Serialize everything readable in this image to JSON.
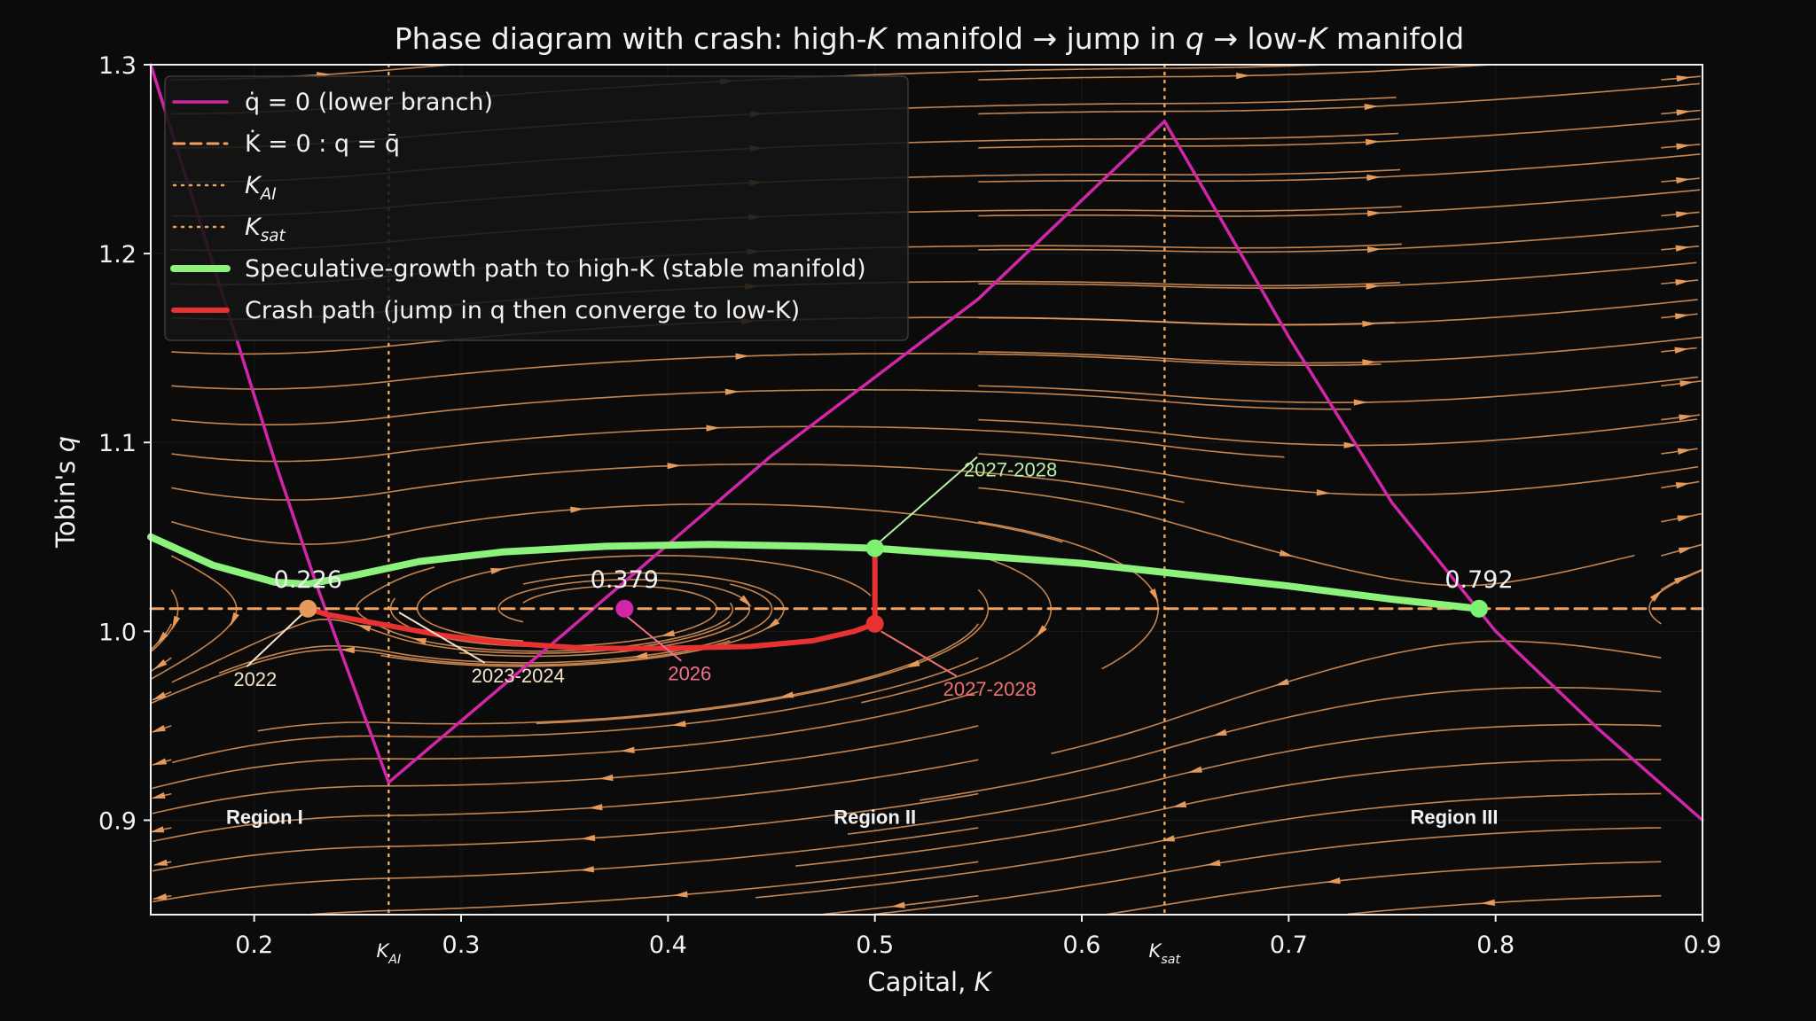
{
  "chart_data": {
    "type": "line",
    "title": "Phase diagram with crash: high-K manifold → jump in q → low-K manifold",
    "title_parts": [
      {
        "t": "Phase diagram with crash: high-",
        "i": false
      },
      {
        "t": "K",
        "i": true
      },
      {
        "t": " manifold → jump in ",
        "i": false
      },
      {
        "t": "q",
        "i": true
      },
      {
        "t": " → low-",
        "i": false
      },
      {
        "t": "K",
        "i": true
      },
      {
        "t": " manifold",
        "i": false
      }
    ],
    "xlabel": "Capital, K",
    "ylabel": "Tobin's q",
    "xlim": [
      0.15,
      0.9
    ],
    "ylim": [
      0.85,
      1.3
    ],
    "x_ticks": [
      0.2,
      0.3,
      0.4,
      0.5,
      0.6,
      0.7,
      0.8,
      0.9
    ],
    "y_ticks": [
      0.9,
      1.0,
      1.1,
      1.2,
      1.3
    ],
    "grid": true,
    "legend_position": "top-left",
    "colors": {
      "background": "#0b0b0b",
      "axes": "#f2f2f2",
      "stream": "#e59a5c",
      "q_dot_zero": "#d126a8",
      "k_dot_zero": "#f0a060",
      "k_lines": "#e8a860",
      "speculative": "#8cf27c",
      "crash": "#e83232"
    },
    "params": {
      "q_bar": 1.012,
      "K_AI": 0.265,
      "K_sat": 0.64
    },
    "series": [
      {
        "name": "q̇ = 0 (lower branch)",
        "role": "q_dot_zero",
        "x": [
          0.15,
          0.17,
          0.19,
          0.21,
          0.23,
          0.25,
          0.265,
          0.35,
          0.45,
          0.55,
          0.64,
          0.7,
          0.75,
          0.8,
          0.85,
          0.9
        ],
        "y": [
          1.3,
          1.23,
          1.16,
          1.09,
          1.025,
          0.965,
          0.92,
          0.999,
          1.093,
          1.176,
          1.27,
          1.156,
          1.068,
          1.0,
          0.948,
          0.9
        ]
      },
      {
        "name": "K̇ = 0 : q = q̄",
        "role": "k_dot_zero",
        "x": [
          0.15,
          0.9
        ],
        "y": [
          1.012,
          1.012
        ]
      },
      {
        "name": "Speculative-growth path to high-K (stable manifold)",
        "role": "speculative",
        "x": [
          0.15,
          0.18,
          0.21,
          0.226,
          0.25,
          0.28,
          0.32,
          0.37,
          0.42,
          0.47,
          0.5,
          0.55,
          0.6,
          0.65,
          0.7,
          0.75,
          0.792
        ],
        "y": [
          1.05,
          1.035,
          1.026,
          1.025,
          1.03,
          1.037,
          1.042,
          1.045,
          1.046,
          1.045,
          1.044,
          1.04,
          1.036,
          1.03,
          1.024,
          1.017,
          1.012
        ]
      },
      {
        "name": "Crash path (jump in q then converge to low-K)",
        "role": "crash",
        "x": [
          0.5,
          0.5,
          0.49,
          0.47,
          0.44,
          0.4,
          0.36,
          0.32,
          0.29,
          0.27,
          0.25,
          0.235,
          0.226
        ],
        "y": [
          1.044,
          1.004,
          1.0,
          0.995,
          0.992,
          0.991,
          0.991,
          0.994,
          0.998,
          1.002,
          1.006,
          1.009,
          1.012
        ]
      }
    ],
    "vlines": [
      {
        "name": "K_AI",
        "x": 0.265
      },
      {
        "name": "K_sat",
        "x": 0.64
      }
    ],
    "points": [
      {
        "x": 0.226,
        "y": 1.012,
        "label": "0.226",
        "role": "k_dot_zero"
      },
      {
        "x": 0.379,
        "y": 1.012,
        "label": "0.379",
        "role": "q_dot_zero"
      },
      {
        "x": 0.792,
        "y": 1.012,
        "label": "0.792",
        "role": "speculative_point"
      },
      {
        "x": 0.5,
        "y": 1.044,
        "label": "",
        "role": "speculative_point"
      },
      {
        "x": 0.5,
        "y": 1.004,
        "label": "",
        "role": "crash"
      }
    ],
    "annotations": [
      {
        "text": "2022",
        "x_text": 0.19,
        "y_text": 0.971,
        "x_point": 0.226,
        "y_point": 1.012,
        "color": "#f4e2c8"
      },
      {
        "text": "2023-2024",
        "x_text": 0.305,
        "y_text": 0.973,
        "x_point": 0.27,
        "y_point": 1.01,
        "color": "#f4e2c8"
      },
      {
        "text": "2026",
        "x_text": 0.4,
        "y_text": 0.974,
        "x_point": 0.38,
        "y_point": 1.008,
        "color": "#f07090"
      },
      {
        "text": "2027-2028",
        "x_text": 0.533,
        "y_text": 0.966,
        "x_point": 0.503,
        "y_point": 1.0,
        "color": "#f07070"
      },
      {
        "text": "2027-2028",
        "x_text": 0.543,
        "y_text": 1.082,
        "x_point": 0.502,
        "y_point": 1.047,
        "color": "#b8f0a8"
      }
    ],
    "regions": [
      {
        "text": "Region I",
        "x": 0.205,
        "y": 0.898
      },
      {
        "text": "Region II",
        "x": 0.5,
        "y": 0.898
      },
      {
        "text": "Region III",
        "x": 0.78,
        "y": 0.898
      }
    ],
    "special_x_labels": [
      {
        "text": "K_AI",
        "x": 0.265
      },
      {
        "text": "K_sat",
        "x": 0.64
      }
    ],
    "legend": [
      {
        "text": "q̇ = 0 (lower branch)",
        "role": "q_dot_zero",
        "style": "solid"
      },
      {
        "text": "K̇ = 0 : q = q̄",
        "role": "k_dot_zero",
        "style": "dashed"
      },
      {
        "text": "K_AI",
        "role": "k_lines",
        "style": "dotted"
      },
      {
        "text": "K_sat",
        "role": "k_lines",
        "style": "dotted"
      },
      {
        "text": "Speculative-growth path to high-K (stable manifold)",
        "role": "speculative",
        "style": "thick"
      },
      {
        "text": "Crash path (jump in q then converge to low-K)",
        "role": "crash",
        "style": "thick"
      }
    ]
  }
}
